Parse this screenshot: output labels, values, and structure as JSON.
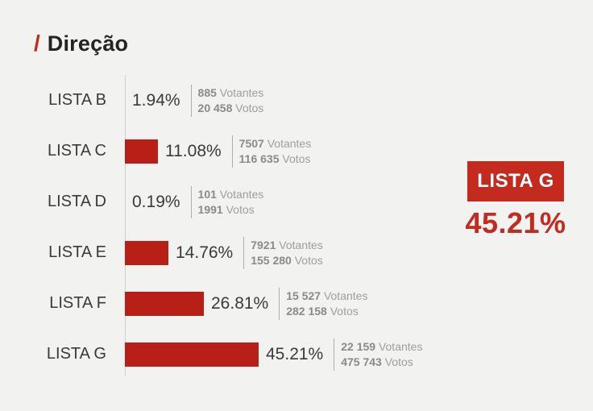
{
  "title": {
    "slash": "/",
    "text": "Direção"
  },
  "labels": {
    "voters_unit": "Votantes",
    "votes_unit": "Votos"
  },
  "colors": {
    "background": "#F2F2F1",
    "bar_red": "#B71F17",
    "accent_red": "#C42B1E",
    "axis_gray": "#CFCFCE",
    "muted_gray": "#9E9E9E",
    "text_dark": "#3A3A3A",
    "winner_text": "#FFFFFF"
  },
  "chart_data": {
    "type": "bar",
    "orientation": "horizontal",
    "title": "Direção",
    "unit": "%",
    "xlim": [
      0,
      50
    ],
    "categories": [
      "LISTA B",
      "LISTA C",
      "LISTA D",
      "LISTA E",
      "LISTA F",
      "LISTA G"
    ],
    "values": [
      1.94,
      11.08,
      0.19,
      14.76,
      26.81,
      45.21
    ],
    "rows": [
      {
        "label": "LISTA B",
        "value": 1.94,
        "percent": "1.94%",
        "voters": "885",
        "votes": "20 458"
      },
      {
        "label": "LISTA C",
        "value": 11.08,
        "percent": "11.08%",
        "voters": "7507",
        "votes": "116 635"
      },
      {
        "label": "LISTA D",
        "value": 0.19,
        "percent": "0.19%",
        "voters": "101",
        "votes": "1991"
      },
      {
        "label": "LISTA E",
        "value": 14.76,
        "percent": "14.76%",
        "voters": "7921",
        "votes": "155 280"
      },
      {
        "label": "LISTA F",
        "value": 26.81,
        "percent": "26.81%",
        "voters": "15 527",
        "votes": "282 158"
      },
      {
        "label": "LISTA G",
        "value": 45.21,
        "percent": "45.21%",
        "voters": "22 159",
        "votes": "475 743"
      }
    ]
  },
  "winner": {
    "label": "LISTA G",
    "percent": "45.21%"
  }
}
